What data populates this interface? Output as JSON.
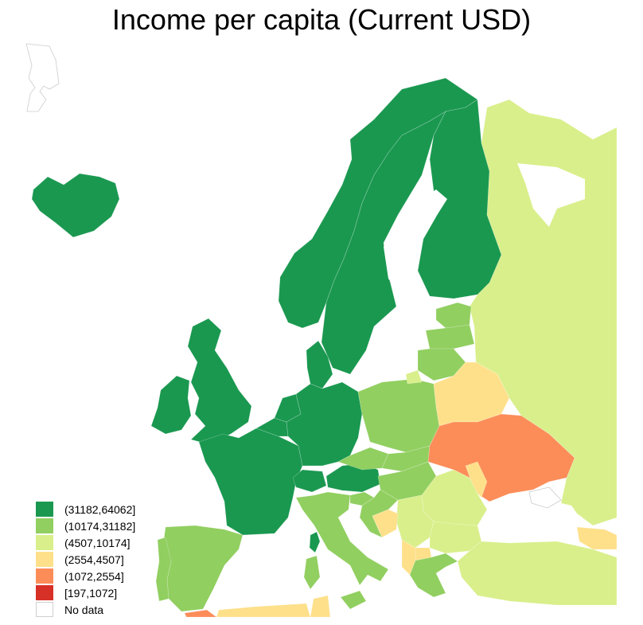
{
  "title": "Income per capita (Current USD)",
  "legend": [
    {
      "label": "(31182,64062]",
      "color": "#1a9850"
    },
    {
      "label": "(10174,31182]",
      "color": "#91cf60"
    },
    {
      "label": "(4507,10174]",
      "color": "#d9ef8b"
    },
    {
      "label": "(2554,4507]",
      "color": "#fee08b"
    },
    {
      "label": "(1072,2554]",
      "color": "#fc8d59"
    },
    {
      "label": "[197,1072]",
      "color": "#d73027"
    },
    {
      "label": "No data",
      "color": "#ffffff"
    }
  ],
  "regions": [
    {
      "name": "iceland",
      "class": "(31182,64062]"
    },
    {
      "name": "norway",
      "class": "(31182,64062]"
    },
    {
      "name": "sweden",
      "class": "(31182,64062]"
    },
    {
      "name": "finland",
      "class": "(31182,64062]"
    },
    {
      "name": "denmark",
      "class": "(31182,64062]"
    },
    {
      "name": "ireland",
      "class": "(31182,64062]"
    },
    {
      "name": "united-kingdom",
      "class": "(31182,64062]"
    },
    {
      "name": "france",
      "class": "(31182,64062]"
    },
    {
      "name": "belgium",
      "class": "(31182,64062]"
    },
    {
      "name": "netherlands",
      "class": "(31182,64062]"
    },
    {
      "name": "germany",
      "class": "(31182,64062]"
    },
    {
      "name": "switzerland",
      "class": "(31182,64062]"
    },
    {
      "name": "austria",
      "class": "(31182,64062]"
    },
    {
      "name": "corsica",
      "class": "(31182,64062]"
    },
    {
      "name": "spain",
      "class": "(10174,31182]"
    },
    {
      "name": "portugal",
      "class": "(10174,31182]"
    },
    {
      "name": "italy",
      "class": "(10174,31182]"
    },
    {
      "name": "sardinia",
      "class": "(10174,31182]"
    },
    {
      "name": "sicily",
      "class": "(10174,31182]"
    },
    {
      "name": "poland",
      "class": "(10174,31182]"
    },
    {
      "name": "czechia",
      "class": "(10174,31182]"
    },
    {
      "name": "slovakia",
      "class": "(10174,31182]"
    },
    {
      "name": "hungary",
      "class": "(10174,31182]"
    },
    {
      "name": "slovenia",
      "class": "(10174,31182]"
    },
    {
      "name": "croatia",
      "class": "(10174,31182]"
    },
    {
      "name": "estonia",
      "class": "(10174,31182]"
    },
    {
      "name": "latvia",
      "class": "(10174,31182]"
    },
    {
      "name": "lithuania",
      "class": "(10174,31182]"
    },
    {
      "name": "greece",
      "class": "(10174,31182]"
    },
    {
      "name": "russia",
      "class": "(4507,10174]"
    },
    {
      "name": "kaliningrad",
      "class": "(4507,10174]"
    },
    {
      "name": "romania",
      "class": "(4507,10174]"
    },
    {
      "name": "bulgaria",
      "class": "(4507,10174]"
    },
    {
      "name": "serbia",
      "class": "(4507,10174]"
    },
    {
      "name": "turkey",
      "class": "(4507,10174]"
    },
    {
      "name": "belarus",
      "class": "(2554,4507]"
    },
    {
      "name": "bosnia",
      "class": "(2554,4507]"
    },
    {
      "name": "albania",
      "class": "(2554,4507]"
    },
    {
      "name": "macedonia",
      "class": "(2554,4507]"
    },
    {
      "name": "moldova",
      "class": "(2554,4507]"
    },
    {
      "name": "algeria",
      "class": "(2554,4507]"
    },
    {
      "name": "tunisia",
      "class": "(2554,4507]"
    },
    {
      "name": "georgia",
      "class": "(2554,4507]"
    },
    {
      "name": "ukraine",
      "class": "(1072,2554]"
    },
    {
      "name": "morocco",
      "class": "(1072,2554]"
    },
    {
      "name": "crimea",
      "class": "No data"
    },
    {
      "name": "greenland",
      "class": "No data"
    }
  ]
}
